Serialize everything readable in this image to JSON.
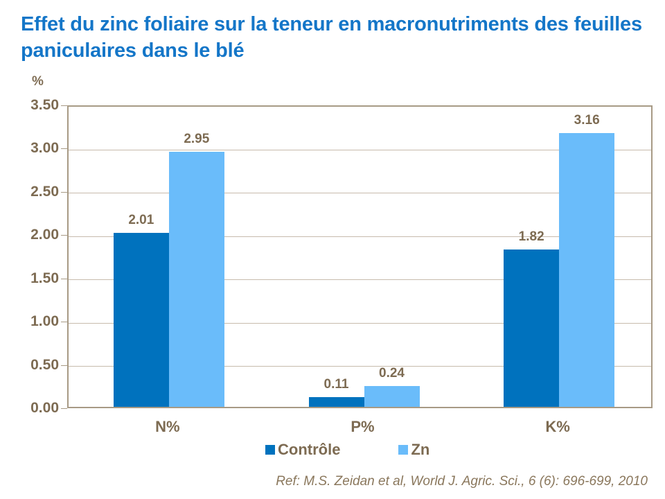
{
  "title": "Effet du zinc foliaire sur la teneur en macronutriments des feuilles paniculaires dans le blé",
  "reference": "Ref: M.S. Zeidan et al, World J. Agric. Sci., 6 (6): 696-699, 2010",
  "chart_data": {
    "type": "bar",
    "title": "Effet du zinc foliaire sur la teneur en macronutriments des feuilles paniculaires dans le blé",
    "categories": [
      "N%",
      "P%",
      "K%"
    ],
    "series": [
      {
        "name": "Contrôle",
        "color": "#0072BE",
        "values": [
          2.01,
          0.11,
          1.82
        ],
        "labels": [
          "2.01",
          "0.11",
          "1.82"
        ]
      },
      {
        "name": "Zn",
        "color": "#6ABCFA",
        "values": [
          2.95,
          0.24,
          3.16
        ],
        "labels": [
          "2.95",
          "0.24",
          "3.16"
        ]
      }
    ],
    "xlabel": "",
    "ylabel": "%",
    "y_axis": {
      "min": 0,
      "max": 3.5,
      "step": 0.5,
      "tick_labels": [
        "0.00",
        "0.50",
        "1.00",
        "1.50",
        "2.00",
        "2.50",
        "3.00",
        "3.50"
      ]
    },
    "grid": true,
    "legend_position": "bottom",
    "value_labels_shown": true
  },
  "colors": {
    "title": "#1476C8",
    "axis_text": "#7D6B52",
    "axis_line": "#A79A85",
    "gridline": "#C7BBAC",
    "series_controle": "#0072BE",
    "series_zn": "#6ABCFA",
    "reference_text": "#8A775C"
  }
}
